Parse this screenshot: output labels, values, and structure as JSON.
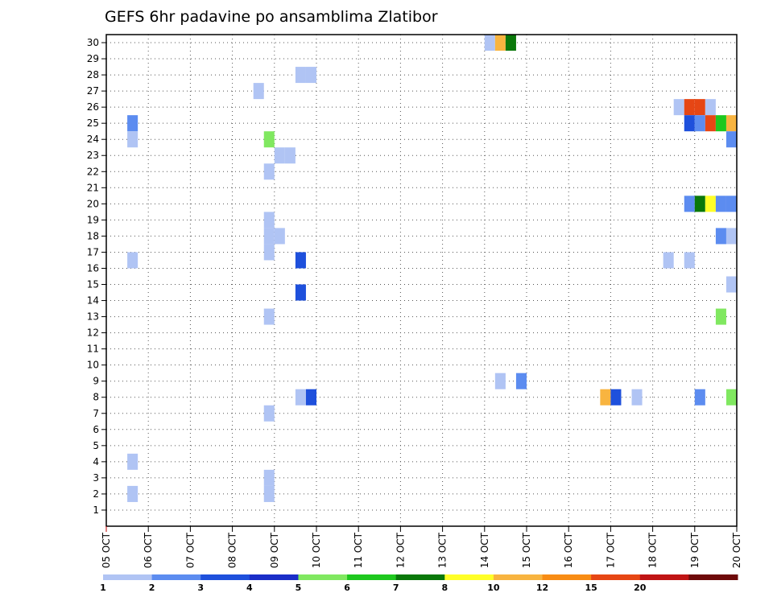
{
  "chart_data": {
    "type": "heatmap",
    "title": "GEFS 6hr padavine po ansamblima Zlatibor",
    "xlabel": "",
    "ylabel": "",
    "x_ticks": [
      "05 OCT",
      "06 OCT",
      "07 OCT",
      "08 OCT",
      "09 OCT",
      "10 OCT",
      "11 OCT",
      "12 OCT",
      "13 OCT",
      "14 OCT",
      "15 OCT",
      "16 OCT",
      "17 OCT",
      "18 OCT",
      "19 OCT",
      "20 OCT"
    ],
    "x_start_day": 5,
    "xlim_days": [
      5,
      20
    ],
    "ylim": [
      0,
      30.5
    ],
    "y_ticks": [
      1,
      2,
      3,
      4,
      5,
      6,
      7,
      8,
      9,
      10,
      11,
      12,
      13,
      14,
      15,
      16,
      17,
      18,
      19,
      20,
      21,
      22,
      23,
      24,
      25,
      26,
      27,
      28,
      29,
      30
    ],
    "grid": true,
    "colorbar": {
      "levels": [
        "1",
        "2",
        "3",
        "4",
        "5",
        "6",
        "7",
        "8",
        "10",
        "12",
        "15",
        "20",
        ""
      ],
      "colors": [
        "#b0c4f4",
        "#5c8cf0",
        "#1e50dc",
        "#1a2ec8",
        "#80e860",
        "#1ec81e",
        "#0a780a",
        "#ffff28",
        "#f8b440",
        "#f88c14",
        "#e64614",
        "#c01414",
        "#6e0a0a"
      ]
    },
    "cells": [
      {
        "x": 14.0,
        "y": 30,
        "c": "#b0c4f4"
      },
      {
        "x": 14.25,
        "y": 30,
        "c": "#f8b440"
      },
      {
        "x": 14.5,
        "y": 30,
        "c": "#0a780a"
      },
      {
        "x": 9.5,
        "y": 28,
        "c": "#b0c4f4"
      },
      {
        "x": 9.75,
        "y": 28,
        "c": "#b0c4f4"
      },
      {
        "x": 8.5,
        "y": 27,
        "c": "#b0c4f4"
      },
      {
        "x": 18.5,
        "y": 26,
        "c": "#b0c4f4"
      },
      {
        "x": 18.75,
        "y": 26,
        "c": "#e64614"
      },
      {
        "x": 19.0,
        "y": 26,
        "c": "#e64614"
      },
      {
        "x": 19.25,
        "y": 26,
        "c": "#b0c4f4"
      },
      {
        "x": 5.5,
        "y": 25,
        "c": "#5c8cf0"
      },
      {
        "x": 18.75,
        "y": 25,
        "c": "#1e50dc"
      },
      {
        "x": 19.0,
        "y": 25,
        "c": "#5c8cf0"
      },
      {
        "x": 19.25,
        "y": 25,
        "c": "#e64614"
      },
      {
        "x": 19.5,
        "y": 25,
        "c": "#1ec81e"
      },
      {
        "x": 19.75,
        "y": 25,
        "c": "#f8b440"
      },
      {
        "x": 5.5,
        "y": 24,
        "c": "#b0c4f4"
      },
      {
        "x": 8.75,
        "y": 24,
        "c": "#80e860"
      },
      {
        "x": 19.75,
        "y": 24,
        "c": "#5c8cf0"
      },
      {
        "x": 9.0,
        "y": 23,
        "c": "#b0c4f4"
      },
      {
        "x": 9.25,
        "y": 23,
        "c": "#b0c4f4"
      },
      {
        "x": 8.75,
        "y": 22,
        "c": "#b0c4f4"
      },
      {
        "x": 18.75,
        "y": 20,
        "c": "#5c8cf0"
      },
      {
        "x": 19.0,
        "y": 20,
        "c": "#0a780a"
      },
      {
        "x": 19.25,
        "y": 20,
        "c": "#ffff28"
      },
      {
        "x": 19.5,
        "y": 20,
        "c": "#5c8cf0"
      },
      {
        "x": 19.75,
        "y": 20,
        "c": "#5c8cf0"
      },
      {
        "x": 8.75,
        "y": 19,
        "c": "#b0c4f4"
      },
      {
        "x": 8.75,
        "y": 18,
        "c": "#b0c4f4"
      },
      {
        "x": 9.0,
        "y": 18,
        "c": "#b0c4f4"
      },
      {
        "x": 19.5,
        "y": 18,
        "c": "#5c8cf0"
      },
      {
        "x": 19.75,
        "y": 18,
        "c": "#b0c4f4"
      },
      {
        "x": 8.75,
        "y": 17,
        "c": "#b0c4f4"
      },
      {
        "x": 5.5,
        "y": 16.5,
        "c": "#b0c4f4"
      },
      {
        "x": 9.5,
        "y": 16.5,
        "c": "#1e50dc"
      },
      {
        "x": 18.25,
        "y": 16.5,
        "c": "#b0c4f4"
      },
      {
        "x": 18.75,
        "y": 16.5,
        "c": "#b0c4f4"
      },
      {
        "x": 19.75,
        "y": 15,
        "c": "#b0c4f4"
      },
      {
        "x": 9.5,
        "y": 14.5,
        "c": "#1e50dc"
      },
      {
        "x": 8.75,
        "y": 13,
        "c": "#b0c4f4"
      },
      {
        "x": 19.5,
        "y": 13,
        "c": "#80e860"
      },
      {
        "x": 14.25,
        "y": 9,
        "c": "#b0c4f4"
      },
      {
        "x": 14.75,
        "y": 9,
        "c": "#5c8cf0"
      },
      {
        "x": 9.5,
        "y": 8,
        "c": "#b0c4f4"
      },
      {
        "x": 9.75,
        "y": 8,
        "c": "#1e50dc"
      },
      {
        "x": 16.75,
        "y": 8,
        "c": "#f8b440"
      },
      {
        "x": 17.0,
        "y": 8,
        "c": "#1e50dc"
      },
      {
        "x": 17.5,
        "y": 8,
        "c": "#b0c4f4"
      },
      {
        "x": 19.0,
        "y": 8,
        "c": "#5c8cf0"
      },
      {
        "x": 19.75,
        "y": 8,
        "c": "#80e860"
      },
      {
        "x": 8.75,
        "y": 7,
        "c": "#b0c4f4"
      },
      {
        "x": 5.5,
        "y": 4,
        "c": "#b0c4f4"
      },
      {
        "x": 8.75,
        "y": 3,
        "c": "#b0c4f4"
      },
      {
        "x": 5.5,
        "y": 2,
        "c": "#b0c4f4"
      },
      {
        "x": 8.75,
        "y": 2,
        "c": "#b0c4f4"
      }
    ]
  }
}
